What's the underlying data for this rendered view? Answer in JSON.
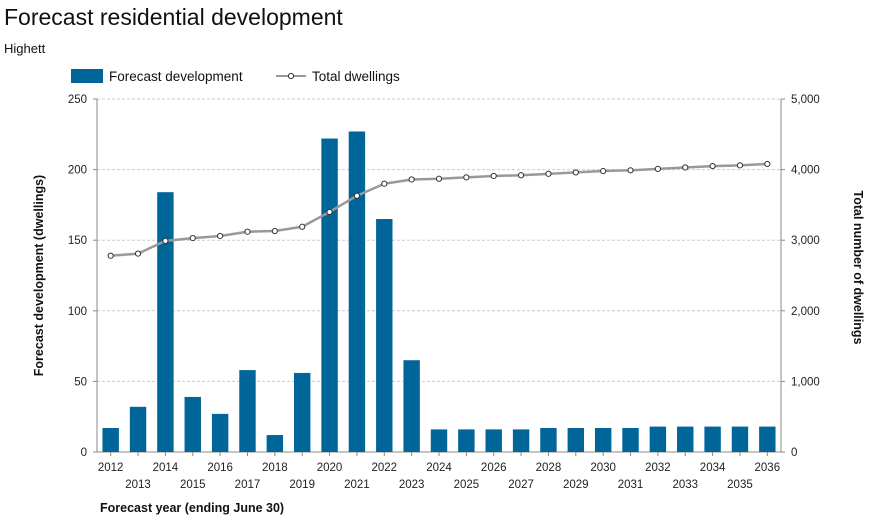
{
  "header": {
    "title": "Forecast residential development",
    "subtitle": "Highett"
  },
  "colors": {
    "bar": "#006699",
    "line": "#999999",
    "marker_fill": "#ffffff",
    "marker_stroke": "#333333",
    "grid": "#cccccc",
    "axis": "#888888"
  },
  "chart_data": {
    "type": "bar",
    "categories": [
      "2012",
      "2013",
      "2014",
      "2015",
      "2016",
      "2017",
      "2018",
      "2019",
      "2020",
      "2021",
      "2022",
      "2023",
      "2024",
      "2025",
      "2026",
      "2027",
      "2028",
      "2029",
      "2030",
      "2031",
      "2032",
      "2033",
      "2034",
      "2035",
      "2036"
    ],
    "series": [
      {
        "name": "Forecast development",
        "type": "bar",
        "axis": "left",
        "values": [
          17,
          32,
          184,
          39,
          27,
          58,
          12,
          56,
          222,
          227,
          165,
          65,
          16,
          16,
          16,
          16,
          17,
          17,
          17,
          17,
          18,
          18,
          18,
          18,
          18
        ]
      },
      {
        "name": "Total dwellings",
        "type": "line",
        "axis": "right",
        "values": [
          2780,
          2810,
          2990,
          3030,
          3060,
          3120,
          3130,
          3190,
          3400,
          3630,
          3800,
          3860,
          3870,
          3890,
          3910,
          3920,
          3940,
          3960,
          3980,
          3990,
          4010,
          4030,
          4050,
          4060,
          4080
        ]
      }
    ],
    "xlabel": "Forecast year (ending June 30)",
    "ylabel": "Forecast development (dwellings)",
    "y2label": "Total number of dwellings",
    "ylim": [
      0,
      250
    ],
    "y2lim": [
      0,
      5000
    ],
    "yticks": [
      "0",
      "50",
      "100",
      "150",
      "200",
      "250"
    ],
    "y2ticks": [
      "0",
      "1,000",
      "2,000",
      "3,000",
      "4,000",
      "5,000"
    ],
    "grid": true,
    "legend": "top-left"
  }
}
